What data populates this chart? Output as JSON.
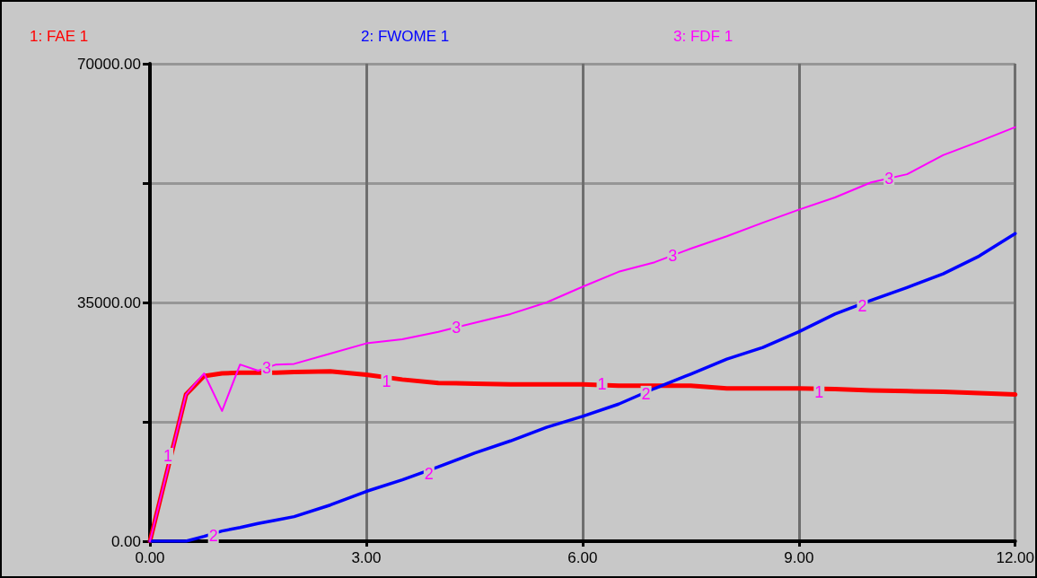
{
  "chart_data": {
    "type": "line",
    "x": [
      0,
      0.5,
      0.75,
      1,
      1.25,
      1.5,
      1.75,
      2,
      2.5,
      3,
      3.5,
      4,
      4.5,
      5,
      5.5,
      6,
      6.5,
      7,
      7.5,
      8,
      8.5,
      9,
      9.5,
      10,
      10.5,
      11,
      11.5,
      12
    ],
    "series": [
      {
        "name": "1: FAE 1",
        "color": "#ff0000",
        "values": [
          0,
          21500,
          24200,
          24600,
          24700,
          24700,
          24700,
          24800,
          24900,
          24400,
          23700,
          23200,
          23100,
          23000,
          23000,
          23000,
          22800,
          22800,
          22800,
          22400,
          22400,
          22400,
          22300,
          22100,
          22000,
          21900,
          21700,
          21500
        ]
      },
      {
        "name": "2: FWOME 1",
        "color": "#0000ff",
        "values": [
          0,
          0,
          700,
          1500,
          2000,
          2600,
          3100,
          3600,
          5300,
          7300,
          9000,
          10900,
          12900,
          14700,
          16700,
          18300,
          20100,
          22400,
          24500,
          26700,
          28400,
          30700,
          33300,
          35300,
          37200,
          39200,
          41800,
          45100
        ]
      },
      {
        "name": "3: FDF 1",
        "color": "#ff00ff",
        "values": [
          0,
          21500,
          24600,
          19100,
          25900,
          25000,
          25900,
          26000,
          27500,
          29000,
          29600,
          30700,
          32000,
          33300,
          35000,
          37300,
          39500,
          40900,
          42900,
          44700,
          46700,
          48600,
          50400,
          52600,
          53800,
          56600,
          58600,
          60700
        ]
      }
    ],
    "xlim": [
      0,
      12
    ],
    "xticks": [
      {
        "value": 0,
        "label": "0.00"
      },
      {
        "value": 3,
        "label": "3.00"
      },
      {
        "value": 6,
        "label": "6.00"
      },
      {
        "value": 9,
        "label": "9.00"
      },
      {
        "value": 12,
        "label": "12.00"
      }
    ],
    "ylim": [
      0,
      70000
    ],
    "yticks": [
      {
        "value": 0,
        "label": "0.00"
      },
      {
        "value": 17500,
        "label": null
      },
      {
        "value": 35000,
        "label": "35000.00"
      },
      {
        "value": 52500,
        "label": null
      },
      {
        "value": 70000,
        "label": "70000.00"
      }
    ],
    "grid": true,
    "legend": "top",
    "marker": "none",
    "line_style": "solid",
    "annotations": [
      {
        "text": "1",
        "x": 0.25,
        "y": 12500
      },
      {
        "text": "1",
        "x": 3.28,
        "y": 23400
      },
      {
        "text": "1",
        "x": 6.27,
        "y": 23000
      },
      {
        "text": "1",
        "x": 9.28,
        "y": 21850
      },
      {
        "text": "2",
        "x": 0.88,
        "y": 800
      },
      {
        "text": "2",
        "x": 3.87,
        "y": 9900
      },
      {
        "text": "2",
        "x": 6.88,
        "y": 21600
      },
      {
        "text": "2",
        "x": 9.88,
        "y": 34500
      },
      {
        "text": "3",
        "x": 1.62,
        "y": 25400
      },
      {
        "text": "3",
        "x": 4.25,
        "y": 31350
      },
      {
        "text": "3",
        "x": 7.25,
        "y": 41900
      },
      {
        "text": "3",
        "x": 10.25,
        "y": 53200
      }
    ]
  }
}
